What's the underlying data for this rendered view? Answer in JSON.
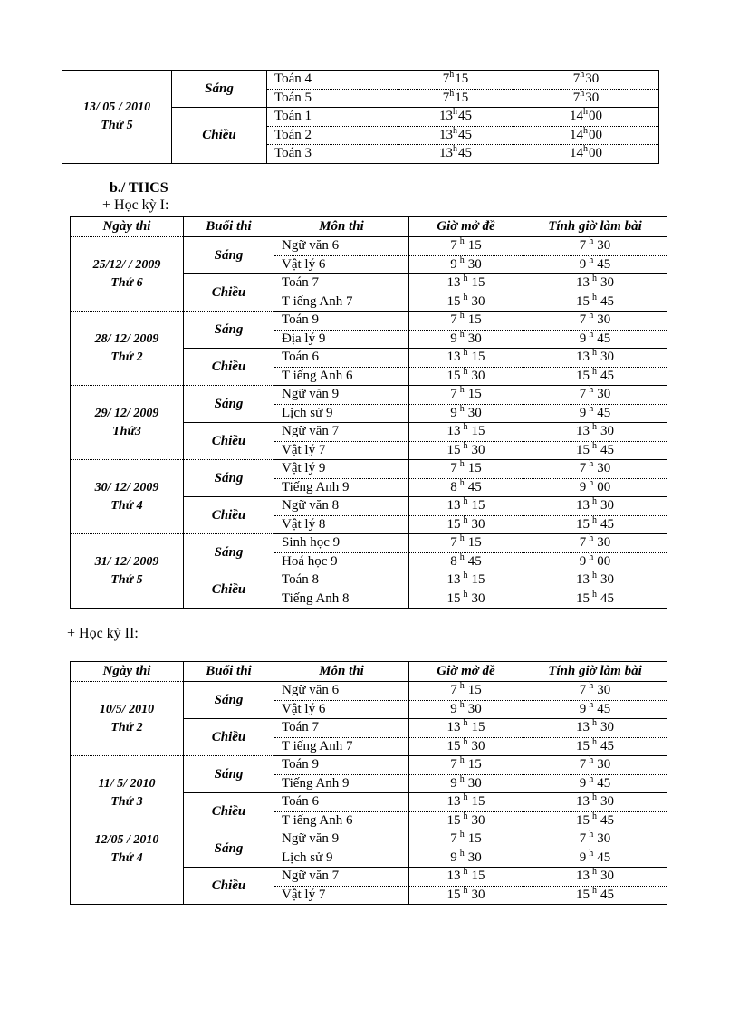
{
  "page": {
    "background": "#ffffff",
    "text_color": "#000000",
    "border_color": "#000000"
  },
  "hour_symbol": "h",
  "sections": {
    "thcs_label": "b./ THCS",
    "hk1_label": "+ Học kỳ I:",
    "hk2_label": "+ Học kỳ II:"
  },
  "table_headers": [
    "Ngày thi",
    "Buổi thi",
    "Môn thi",
    "Giờ mở đề",
    "Tính giờ làm bài"
  ],
  "top_table": {
    "groups": [
      {
        "date": "13/ 05 / 2010",
        "day": "Thứ 5",
        "sessions": [
          {
            "label": "Sáng",
            "exams": [
              {
                "subject": "Toán 4",
                "open_h": "7",
                "open_m": "15",
                "start_h": "7",
                "start_m": "30"
              },
              {
                "subject": "Toán 5",
                "open_h": "7",
                "open_m": "15",
                "start_h": "7",
                "start_m": "30"
              }
            ]
          },
          {
            "label": "Chiều",
            "exams": [
              {
                "subject": "Toán 1",
                "open_h": "13",
                "open_m": "45",
                "start_h": "14",
                "start_m": "00"
              },
              {
                "subject": "Toán 2",
                "open_h": "13",
                "open_m": "45",
                "start_h": "14",
                "start_m": "00"
              },
              {
                "subject": "Toán 3",
                "open_h": "13",
                "open_m": "45",
                "start_h": "14",
                "start_m": "00"
              }
            ]
          }
        ]
      }
    ]
  },
  "hk1_table": {
    "groups": [
      {
        "date": "25/12/ / 2009",
        "day": "Thứ 6",
        "sessions": [
          {
            "label": "Sáng",
            "exams": [
              {
                "subject": "Ngữ văn 6",
                "open_h": "7",
                "open_m": "15",
                "start_h": "7",
                "start_m": "30"
              },
              {
                "subject": "Vật lý 6",
                "open_h": "9",
                "open_m": "30",
                "start_h": "9",
                "start_m": "45"
              }
            ]
          },
          {
            "label": "Chiều",
            "exams": [
              {
                "subject": "Toán 7",
                "open_h": "13",
                "open_m": "15",
                "start_h": "13",
                "start_m": "30"
              },
              {
                "subject": "T iếng Anh 7",
                "open_h": "15",
                "open_m": "30",
                "start_h": "15",
                "start_m": "45"
              }
            ]
          }
        ]
      },
      {
        "date": "28/ 12/ 2009",
        "day": "Thứ 2",
        "sessions": [
          {
            "label": "Sáng",
            "exams": [
              {
                "subject": "Toán 9",
                "open_h": "7",
                "open_m": "15",
                "start_h": "7",
                "start_m": "30"
              },
              {
                "subject": "Địa lý 9",
                "open_h": "9",
                "open_m": "30",
                "start_h": "9",
                "start_m": "45"
              }
            ]
          },
          {
            "label": "Chiều",
            "exams": [
              {
                "subject": "Toán 6",
                "open_h": "13",
                "open_m": "15",
                "start_h": "13",
                "start_m": "30"
              },
              {
                "subject": "T iếng Anh 6",
                "open_h": "15",
                "open_m": "30",
                "start_h": "15",
                "start_m": "45"
              }
            ]
          }
        ]
      },
      {
        "date": "29/ 12/ 2009",
        "day": "Thứ3",
        "sessions": [
          {
            "label": "Sáng",
            "exams": [
              {
                "subject": "Ngữ văn 9",
                "open_h": "7",
                "open_m": "15",
                "start_h": "7",
                "start_m": "30"
              },
              {
                "subject": "Lịch sử 9",
                "open_h": "9",
                "open_m": "30",
                "start_h": "9",
                "start_m": "45"
              }
            ]
          },
          {
            "label": "Chiều",
            "exams": [
              {
                "subject": "Ngữ văn 7",
                "open_h": "13",
                "open_m": "15",
                "start_h": "13",
                "start_m": "30"
              },
              {
                "subject": "Vật lý 7",
                "open_h": "15",
                "open_m": "30",
                "start_h": "15",
                "start_m": "45"
              }
            ]
          }
        ]
      },
      {
        "date": "30/ 12/ 2009",
        "day": "Thứ 4",
        "sessions": [
          {
            "label": "Sáng",
            "exams": [
              {
                "subject": "Vật lý 9",
                "open_h": "7",
                "open_m": "15",
                "start_h": "7",
                "start_m": "30"
              },
              {
                "subject": "Tiếng Anh 9",
                "open_h": "8",
                "open_m": "45",
                "start_h": "9",
                "start_m": "00"
              }
            ]
          },
          {
            "label": "Chiều",
            "exams": [
              {
                "subject": "Ngữ văn 8",
                "open_h": "13",
                "open_m": "15",
                "start_h": "13",
                "start_m": "30"
              },
              {
                "subject": "Vật lý 8",
                "open_h": "15",
                "open_m": "30",
                "start_h": "15",
                "start_m": "45"
              }
            ]
          }
        ]
      },
      {
        "date": "31/ 12/ 2009",
        "day": "Thứ 5",
        "sessions": [
          {
            "label": "Sáng",
            "exams": [
              {
                "subject": "Sinh học 9",
                "open_h": "7",
                "open_m": "15",
                "start_h": "7",
                "start_m": "30"
              },
              {
                "subject": "Hoá học 9",
                "open_h": "8",
                "open_m": "45",
                "start_h": "9",
                "start_m": "00"
              }
            ]
          },
          {
            "label": "Chiều",
            "exams": [
              {
                "subject": "Toán 8",
                "open_h": "13",
                "open_m": "15",
                "start_h": "13",
                "start_m": "30"
              },
              {
                "subject": "Tiếng Anh 8",
                "open_h": "15",
                "open_m": "30",
                "start_h": "15",
                "start_m": "45"
              }
            ]
          }
        ]
      }
    ]
  },
  "hk2_table": {
    "groups": [
      {
        "date": "10/5/ 2010",
        "day": "Thứ 2",
        "sessions": [
          {
            "label": "Sáng",
            "exams": [
              {
                "subject": "Ngữ văn 6",
                "open_h": "7",
                "open_m": "15",
                "start_h": "7",
                "start_m": "30"
              },
              {
                "subject": "Vật lý 6",
                "open_h": "9",
                "open_m": "30",
                "start_h": "9",
                "start_m": "45"
              }
            ]
          },
          {
            "label": "Chiều",
            "exams": [
              {
                "subject": "Toán 7",
                "open_h": "13",
                "open_m": "15",
                "start_h": "13",
                "start_m": "30"
              },
              {
                "subject": "T iếng Anh 7",
                "open_h": "15",
                "open_m": "30",
                "start_h": "15",
                "start_m": "45"
              }
            ]
          }
        ]
      },
      {
        "date": "11/ 5/ 2010",
        "day": "Thứ 3",
        "sessions": [
          {
            "label": "Sáng",
            "exams": [
              {
                "subject": "Toán 9",
                "open_h": "7",
                "open_m": "15",
                "start_h": "7",
                "start_m": "30"
              },
              {
                "subject": "Tiếng Anh 9",
                "open_h": "9",
                "open_m": "30",
                "start_h": "9",
                "start_m": "45"
              }
            ]
          },
          {
            "label": "Chiều",
            "exams": [
              {
                "subject": "Toán 6",
                "open_h": "13",
                "open_m": "15",
                "start_h": "13",
                "start_m": "30"
              },
              {
                "subject": "T iếng Anh 6",
                "open_h": "15",
                "open_m": "30",
                "start_h": "15",
                "start_m": "45"
              }
            ]
          }
        ]
      },
      {
        "date": "12/05 / 2010",
        "day": "Thứ 4",
        "sessions": [
          {
            "label": "Sáng",
            "exams": [
              {
                "subject": "Ngữ văn 9",
                "open_h": "7",
                "open_m": "15",
                "start_h": "7",
                "start_m": "30"
              },
              {
                "subject": "Lịch sử 9",
                "open_h": "9",
                "open_m": "30",
                "start_h": "9",
                "start_m": "45"
              }
            ]
          },
          {
            "label": "Chiều",
            "exams": [
              {
                "subject": "Ngữ văn 7",
                "open_h": "13",
                "open_m": "15",
                "start_h": "13",
                "start_m": "30"
              },
              {
                "subject": "Vật lý 7",
                "open_h": "15",
                "open_m": "30",
                "start_h": "15",
                "start_m": "45"
              }
            ]
          }
        ]
      }
    ]
  }
}
